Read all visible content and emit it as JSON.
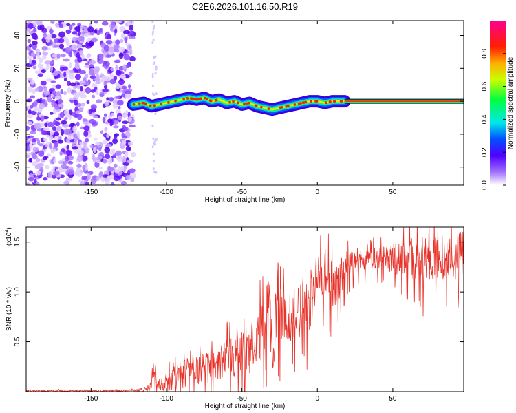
{
  "chart_data": [
    {
      "type": "heatmap",
      "title": "C2E6.2026.101.16.50.R19",
      "xlabel": "Height of straight line (km)",
      "ylabel": "Frequency (Hz)",
      "xlim": [
        -193,
        97
      ],
      "ylim": [
        -51,
        49
      ],
      "x_ticks": [
        "-150",
        "-100",
        "-50",
        "0",
        "50"
      ],
      "x_tick_values": [
        -150,
        -100,
        -50,
        0,
        50
      ],
      "y_ticks": [
        "40",
        "20",
        "0",
        "-20",
        "-40"
      ],
      "y_tick_values": [
        40,
        20,
        0,
        -20,
        -40
      ],
      "description_values": {
        "noise_region_x": [
          -193,
          -122
        ],
        "signal_start_x": -122,
        "stable_line_start_x": 18,
        "stable_frequency": 0
      },
      "ridge": {
        "x": [
          -122,
          -115,
          -110,
          -105,
          -100,
          -95,
          -90,
          -85,
          -80,
          -75,
          -70,
          -65,
          -60,
          -55,
          -50,
          -45,
          -40,
          -35,
          -30,
          -25,
          -20,
          -15,
          -10,
          -5,
          0,
          5,
          10,
          15,
          18
        ],
        "freq": [
          -2,
          -1,
          -3,
          -2,
          -1,
          0,
          1,
          2,
          1,
          2,
          0,
          1,
          -1,
          0,
          -2,
          -1,
          -3,
          -4,
          -5,
          -4,
          -3,
          -2,
          -1,
          0,
          0,
          -1,
          0,
          0,
          0
        ]
      },
      "colorbar": {
        "label": "Normalized spectral amplitude",
        "ticks": [
          "0.0",
          "0.2",
          "0.4",
          "0.6",
          "0.8"
        ],
        "tick_values": [
          0.0,
          0.2,
          0.4,
          0.6,
          0.8
        ],
        "range": [
          0,
          1
        ]
      }
    },
    {
      "type": "line",
      "xlabel": "Height of straight line (km)",
      "ylabel": "SNR (10 * v/v)",
      "scale_label": "(x10",
      "scale_exponent": "4",
      "scale_close": ")",
      "xlim": [
        -193,
        97
      ],
      "ylim": [
        0,
        1.65
      ],
      "x_ticks": [
        "-150",
        "-100",
        "-50",
        "0",
        "50"
      ],
      "x_tick_values": [
        -150,
        -100,
        -50,
        0,
        50
      ],
      "y_ticks": [
        "1.5",
        "1.0",
        "0.5"
      ],
      "y_tick_values": [
        1.5,
        1.0,
        0.5
      ],
      "series": [
        {
          "name": "SNR",
          "color": "#e8332a",
          "x": [
            -193,
            -170,
            -150,
            -130,
            -115,
            -110,
            -108,
            -106,
            -103,
            -100,
            -95,
            -90,
            -85,
            -80,
            -75,
            -70,
            -65,
            -60,
            -55,
            -50,
            -45,
            -40,
            -35,
            -32,
            -30,
            -25,
            -20,
            -15,
            -10,
            -5,
            0,
            5,
            10,
            15,
            20,
            25,
            30,
            40,
            50,
            60,
            70,
            80,
            90,
            97
          ],
          "mean": [
            0.01,
            0.01,
            0.01,
            0.012,
            0.02,
            0.08,
            0.25,
            0.1,
            0.08,
            0.1,
            0.15,
            0.18,
            0.22,
            0.25,
            0.24,
            0.28,
            0.3,
            0.35,
            0.38,
            0.4,
            0.45,
            0.55,
            0.7,
            0.9,
            0.6,
            0.8,
            0.85,
            0.8,
            0.9,
            0.95,
            1.15,
            1.2,
            1.1,
            1.15,
            1.3,
            1.32,
            1.33,
            1.34,
            1.35,
            1.36,
            1.36,
            1.37,
            1.38,
            1.39
          ],
          "spread": [
            0.008,
            0.008,
            0.008,
            0.008,
            0.02,
            0.05,
            0.12,
            0.06,
            0.08,
            0.1,
            0.12,
            0.14,
            0.15,
            0.16,
            0.16,
            0.16,
            0.18,
            0.2,
            0.22,
            0.22,
            0.25,
            0.28,
            0.3,
            0.3,
            0.35,
            0.3,
            0.3,
            0.3,
            0.3,
            0.3,
            0.28,
            0.3,
            0.28,
            0.25,
            0.15,
            0.1,
            0.1,
            0.12,
            0.15,
            0.2,
            0.25,
            0.22,
            0.25,
            0.25
          ]
        }
      ]
    }
  ]
}
